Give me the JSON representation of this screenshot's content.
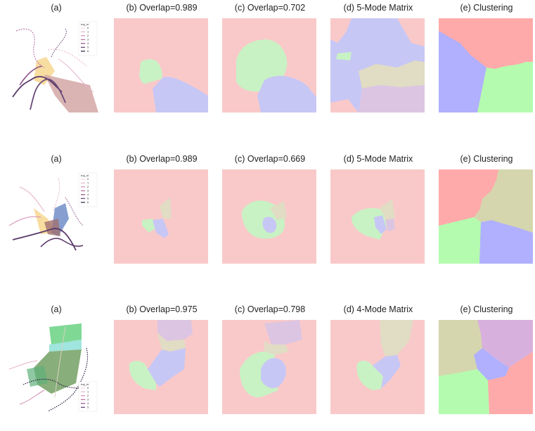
{
  "rows": [
    {
      "titles": [
        "(a)",
        "(b) Overlap=0.989",
        "(c) Overlap=0.702",
        "(d) 5-Mode Matrix",
        "(e) Clustering"
      ],
      "legend": {
        "title": "traj_id",
        "items": [
          "0",
          "1",
          "2",
          "3",
          "4",
          "5",
          "6"
        ]
      }
    },
    {
      "titles": [
        "(a)",
        "(b) Overlap=0.989",
        "(c) Overlap=0.669",
        "(d) 5-Mode Matrix",
        "(e) Clustering"
      ],
      "legend": {
        "title": "traj_id",
        "items": [
          "0",
          "1",
          "2",
          "3",
          "4",
          "5",
          "6"
        ]
      }
    },
    {
      "titles": [
        "(a)",
        "(b) Overlap=0.975",
        "(c) Overlap=0.798",
        "(d) 4-Mode Matrix",
        "(e) Clustering"
      ],
      "legend": {
        "title": "traj_id",
        "items": [
          "0",
          "1",
          "2",
          "3",
          "4",
          "5"
        ]
      }
    }
  ],
  "colors": {
    "pink": "#f9c9c9",
    "blue": "#c7c7f5",
    "green": "#c8f2c4",
    "tan": "#e1dcc4",
    "mauve": "#dcc5e2",
    "cluster_red": "#ffaaaa",
    "cluster_blue": "#b0b0ff",
    "cluster_green": "#b4fbb0",
    "cluster_tan": "#d6d6ae",
    "cluster_purple": "#d8b0de",
    "traj_light": "#e8b0c8",
    "traj_dark": "#5a3a6a",
    "legend_swatches": [
      "#f2d6e4",
      "#e5b4cd",
      "#d38bb2",
      "#b0699a",
      "#8a4f86",
      "#5b3a6c",
      "#2d1b3f"
    ]
  }
}
